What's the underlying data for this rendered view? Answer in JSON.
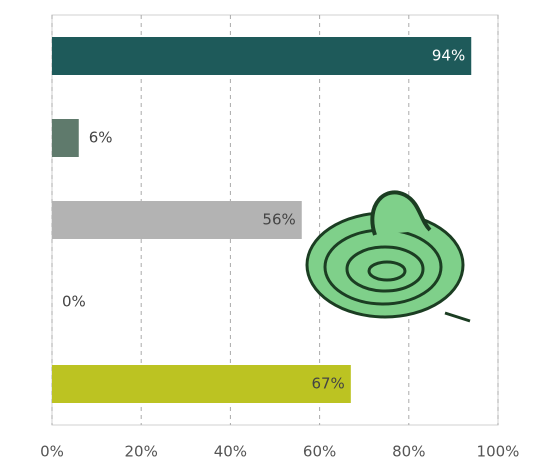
{
  "chart_data": {
    "type": "bar",
    "orientation": "horizontal",
    "categories": [
      null,
      null,
      null,
      null,
      null
    ],
    "values": [
      94,
      6,
      56,
      0,
      67
    ],
    "value_labels": [
      "94%",
      "6%",
      "56%",
      "0%",
      "67%"
    ],
    "colors": [
      "#1e5a5a",
      "#5f7a6c",
      "#b3b3b3",
      "#9a9a9a",
      "#bcc322"
    ],
    "xlim": [
      0,
      100
    ],
    "xticks": [
      {
        "value": 0,
        "label": "0%"
      },
      {
        "value": 20,
        "label": "20%"
      },
      {
        "value": 40,
        "label": "40%"
      },
      {
        "value": 60,
        "label": "60%"
      },
      {
        "value": 80,
        "label": "80%"
      },
      {
        "value": 100,
        "label": "100%"
      }
    ],
    "grid": true
  }
}
